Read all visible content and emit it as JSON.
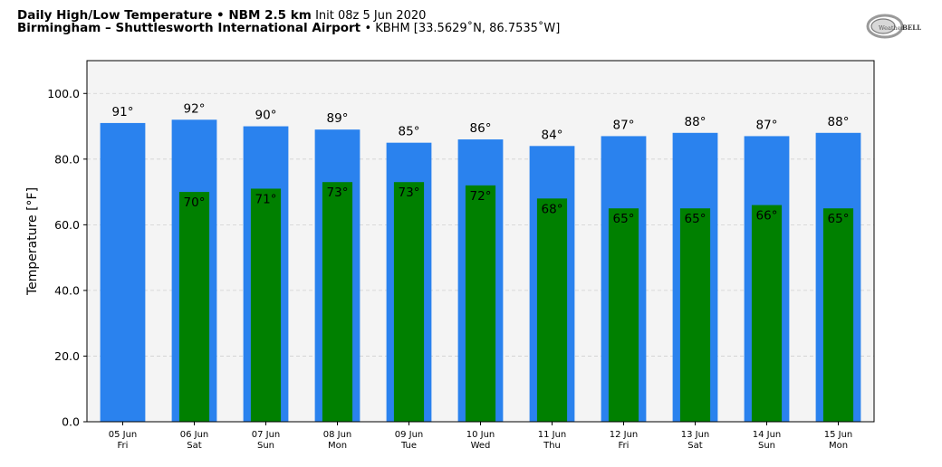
{
  "header": {
    "title_bold": "Daily High/Low Temperature • NBM 2.5 km",
    "init_text": "Init 08z 5 Jun 2020",
    "station_bold": "Birmingham – Shuttlesworth International Airport",
    "station_info": "• KBHM [33.5629˚N, 86.7535˚W]"
  },
  "logo": {
    "text_left": "Weather",
    "text_right": "BELL"
  },
  "colors": {
    "high": "#2a82ee",
    "low": "#008000",
    "plot_bg": "#f4f4f4",
    "grid": "#d0d0d0"
  },
  "chart_data": {
    "type": "bar",
    "ylabel": "Temperature [°F]",
    "ylim": [
      0,
      110
    ],
    "yticks": [
      "0.0",
      "20.0",
      "40.0",
      "60.0",
      "80.0",
      "100.0"
    ],
    "ytick_values": [
      0,
      20,
      40,
      60,
      80,
      100
    ],
    "grid": true,
    "categories": [
      {
        "date": "05 Jun",
        "day": "Fri"
      },
      {
        "date": "06 Jun",
        "day": "Sat"
      },
      {
        "date": "07 Jun",
        "day": "Sun"
      },
      {
        "date": "08 Jun",
        "day": "Mon"
      },
      {
        "date": "09 Jun",
        "day": "Tue"
      },
      {
        "date": "10 Jun",
        "day": "Wed"
      },
      {
        "date": "11 Jun",
        "day": "Thu"
      },
      {
        "date": "12 Jun",
        "day": "Fri"
      },
      {
        "date": "13 Jun",
        "day": "Sat"
      },
      {
        "date": "14 Jun",
        "day": "Sun"
      },
      {
        "date": "15 Jun",
        "day": "Mon"
      }
    ],
    "series": [
      {
        "values": [
          91,
          92,
          90,
          89,
          85,
          86,
          84,
          87,
          88,
          87,
          88
        ],
        "labels": [
          "91°",
          "92°",
          "90°",
          "89°",
          "85°",
          "86°",
          "84°",
          "87°",
          "88°",
          "87°",
          "88°"
        ]
      },
      {
        "values": [
          null,
          70,
          71,
          73,
          73,
          72,
          68,
          65,
          65,
          66,
          65
        ],
        "labels": [
          "",
          "70°",
          "71°",
          "73°",
          "73°",
          "72°",
          "68°",
          "65°",
          "65°",
          "66°",
          "65°"
        ]
      }
    ]
  }
}
